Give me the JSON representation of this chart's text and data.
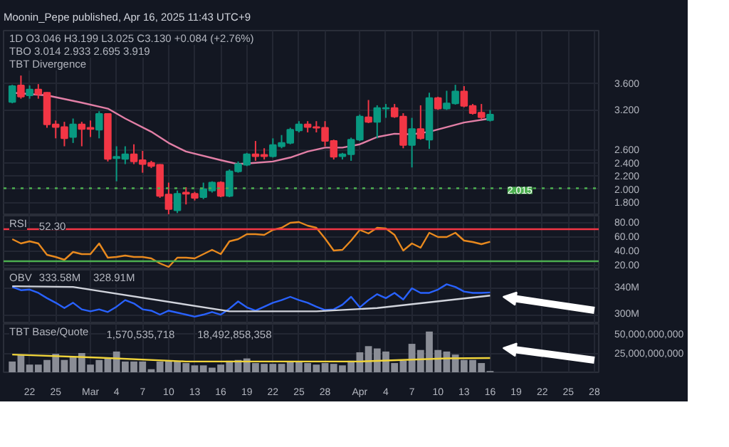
{
  "chart_data": [
    {
      "type": "candlestick",
      "title": "Moonin_Pepe published, Apr 16, 2025 11:43 UTC+9",
      "annotations": [
        "1D  O3.046 H3.199 L3.025 C3.130 +0.084 (+2.76%)",
        "TBO 3.014 2.933 2.695 3.919",
        "TBT Divergence"
      ],
      "x": [
        "2025-02-20",
        "2025-02-21",
        "2025-02-22",
        "2025-02-23",
        "2025-02-24",
        "2025-02-25",
        "2025-02-26",
        "2025-02-27",
        "2025-02-28",
        "2025-03-01",
        "2025-03-02",
        "2025-03-03",
        "2025-03-04",
        "2025-03-05",
        "2025-03-06",
        "2025-03-07",
        "2025-03-08",
        "2025-03-09",
        "2025-03-10",
        "2025-03-11",
        "2025-03-12",
        "2025-03-13",
        "2025-03-14",
        "2025-03-15",
        "2025-03-16",
        "2025-03-17",
        "2025-03-18",
        "2025-03-19",
        "2025-03-20",
        "2025-03-21",
        "2025-03-22",
        "2025-03-23",
        "2025-03-24",
        "2025-03-25",
        "2025-03-26",
        "2025-03-27",
        "2025-03-28",
        "2025-03-29",
        "2025-03-30",
        "2025-03-31",
        "2025-04-01",
        "2025-04-02",
        "2025-04-03",
        "2025-04-04",
        "2025-04-05",
        "2025-04-06",
        "2025-04-07",
        "2025-04-08",
        "2025-04-09",
        "2025-04-10",
        "2025-04-11",
        "2025-04-12",
        "2025-04-13",
        "2025-04-14",
        "2025-04-15",
        "2025-04-16"
      ],
      "ohlc": [
        [
          3.32,
          3.58,
          3.3,
          3.56
        ],
        [
          3.57,
          3.72,
          3.37,
          3.4
        ],
        [
          3.42,
          3.57,
          3.37,
          3.51
        ],
        [
          3.51,
          3.59,
          3.37,
          3.44
        ],
        [
          3.46,
          3.47,
          2.93,
          2.98
        ],
        [
          2.98,
          3.04,
          2.77,
          2.94
        ],
        [
          2.94,
          3.02,
          2.65,
          2.77
        ],
        [
          2.79,
          3.07,
          2.7,
          2.98
        ],
        [
          2.98,
          3.02,
          2.65,
          2.91
        ],
        [
          2.93,
          3.04,
          2.79,
          2.91
        ],
        [
          2.9,
          3.18,
          2.77,
          3.14
        ],
        [
          3.14,
          3.15,
          2.42,
          2.46
        ],
        [
          2.47,
          2.65,
          2.12,
          2.49
        ],
        [
          2.46,
          2.65,
          2.38,
          2.53
        ],
        [
          2.53,
          2.68,
          2.38,
          2.42
        ],
        [
          2.44,
          2.58,
          2.25,
          2.38
        ],
        [
          2.4,
          2.43,
          2.32,
          2.35
        ],
        [
          2.37,
          2.38,
          1.87,
          1.9
        ],
        [
          1.92,
          2.1,
          1.62,
          1.7
        ],
        [
          1.68,
          1.98,
          1.64,
          1.93
        ],
        [
          1.95,
          2.03,
          1.77,
          1.93
        ],
        [
          1.93,
          1.96,
          1.83,
          1.87
        ],
        [
          1.88,
          2.1,
          1.85,
          2.0
        ],
        [
          1.98,
          2.12,
          1.95,
          2.1
        ],
        [
          2.1,
          2.12,
          1.88,
          1.9
        ],
        [
          1.9,
          2.3,
          1.88,
          2.27
        ],
        [
          2.27,
          2.42,
          2.25,
          2.38
        ],
        [
          2.37,
          2.55,
          2.35,
          2.53
        ],
        [
          2.53,
          2.73,
          2.43,
          2.5
        ],
        [
          2.52,
          2.62,
          2.45,
          2.5
        ],
        [
          2.5,
          2.77,
          2.48,
          2.67
        ],
        [
          2.65,
          2.82,
          2.62,
          2.7
        ],
        [
          2.7,
          2.93,
          2.68,
          2.9
        ],
        [
          2.89,
          3.03,
          2.86,
          2.98
        ],
        [
          2.98,
          3.03,
          2.86,
          2.94
        ],
        [
          2.94,
          3.03,
          2.86,
          2.93
        ],
        [
          2.93,
          3.03,
          2.65,
          2.73
        ],
        [
          2.73,
          2.75,
          2.45,
          2.49
        ],
        [
          2.5,
          2.55,
          2.45,
          2.53
        ],
        [
          2.53,
          2.78,
          2.43,
          2.75
        ],
        [
          2.75,
          3.13,
          2.73,
          3.1
        ],
        [
          3.09,
          3.35,
          3.0,
          3.02
        ],
        [
          3.02,
          3.27,
          2.77,
          3.23
        ],
        [
          3.22,
          3.29,
          3.08,
          3.23
        ],
        [
          3.23,
          3.29,
          3.08,
          3.1
        ],
        [
          3.1,
          3.15,
          2.62,
          2.67
        ],
        [
          2.67,
          3.08,
          2.33,
          2.91
        ],
        [
          2.91,
          3.27,
          2.75,
          2.77
        ],
        [
          2.75,
          3.46,
          2.61,
          3.38
        ],
        [
          3.38,
          3.4,
          3.2,
          3.22
        ],
        [
          3.22,
          3.49,
          3.2,
          3.3
        ],
        [
          3.3,
          3.58,
          3.28,
          3.48
        ],
        [
          3.48,
          3.56,
          3.24,
          3.26
        ],
        [
          3.26,
          3.29,
          3.13,
          3.15
        ],
        [
          3.16,
          3.29,
          3.06,
          3.09
        ],
        [
          3.046,
          3.199,
          3.025,
          3.13
        ]
      ],
      "colors": [
        "#089981",
        "#f23645",
        "#089981",
        "#f23645",
        "#f23645",
        "#f23645",
        "#f23645",
        "#089981",
        "#f23645",
        "#f23645",
        "#089981",
        "#f23645",
        "#089981",
        "#089981",
        "#f23645",
        "#f23645",
        "#f23645",
        "#f23645",
        "#f23645",
        "#089981",
        "#f23645",
        "#f23645",
        "#089981",
        "#089981",
        "#f23645",
        "#089981",
        "#089981",
        "#089981",
        "#f23645",
        "#f23645",
        "#089981",
        "#089981",
        "#089981",
        "#089981",
        "#f23645",
        "#f23645",
        "#f23645",
        "#f23645",
        "#089981",
        "#089981",
        "#089981",
        "#f23645",
        "#089981",
        "#089981",
        "#f23645",
        "#f23645",
        "#089981",
        "#f23645",
        "#089981",
        "#f23645",
        "#089981",
        "#089981",
        "#f23645",
        "#f23645",
        "#f23645",
        "#089981"
      ],
      "series": [
        {
          "type": "line",
          "color": "#e27fa6",
          "x": [
            "2025-02-20",
            "2025-02-24",
            "2025-02-28",
            "2025-03-03",
            "2025-03-05",
            "2025-03-08",
            "2025-03-10",
            "2025-03-12",
            "2025-03-16",
            "2025-03-18",
            "2025-03-20",
            "2025-03-22",
            "2025-03-24",
            "2025-03-26",
            "2025-03-28",
            "2025-03-30",
            "2025-04-01",
            "2025-04-03",
            "2025-04-05",
            "2025-04-07",
            "2025-04-09",
            "2025-04-11",
            "2025-04-13",
            "2025-04-16"
          ],
          "values": [
            3.46,
            3.42,
            3.31,
            3.22,
            3.07,
            2.87,
            2.7,
            2.57,
            2.44,
            2.38,
            2.4,
            2.42,
            2.48,
            2.57,
            2.63,
            2.63,
            2.68,
            2.79,
            2.84,
            2.83,
            2.87,
            2.94,
            3.01,
            3.07
          ]
        }
      ],
      "ref_lines": [
        {
          "axis": "y",
          "value": 2.015,
          "label": "2.015",
          "color": "#4caf50",
          "line_style": "dotted"
        }
      ],
      "xlim": [
        "2025-02-19",
        "2025-04-28T12:00"
      ],
      "ylim": [
        1.6,
        4.4
      ],
      "yticks": [
        {
          "value": 1.8,
          "label": "1.800"
        },
        {
          "value": 2.0,
          "label": "2.000"
        },
        {
          "value": 2.2,
          "label": "2.200"
        },
        {
          "value": 2.4,
          "label": "2.400"
        },
        {
          "value": 2.6,
          "label": "2.600"
        },
        {
          "value": 3.2,
          "label": "3.200"
        },
        {
          "value": 3.6,
          "label": "3.600"
        }
      ],
      "tick_labels": "y",
      "grid": true
    },
    {
      "type": "line",
      "title": "RSI",
      "annotations": [
        "52.30"
      ],
      "x": [
        "2025-02-20",
        "2025-02-21",
        "2025-02-22",
        "2025-02-23",
        "2025-02-24",
        "2025-02-25",
        "2025-02-26",
        "2025-02-27",
        "2025-02-28",
        "2025-03-01",
        "2025-03-02",
        "2025-03-03",
        "2025-03-04",
        "2025-03-05",
        "2025-03-06",
        "2025-03-07",
        "2025-03-08",
        "2025-03-09",
        "2025-03-10",
        "2025-03-11",
        "2025-03-12",
        "2025-03-13",
        "2025-03-14",
        "2025-03-15",
        "2025-03-16",
        "2025-03-17",
        "2025-03-18",
        "2025-03-19",
        "2025-03-20",
        "2025-03-21",
        "2025-03-22",
        "2025-03-23",
        "2025-03-24",
        "2025-03-25",
        "2025-03-26",
        "2025-03-27",
        "2025-03-28",
        "2025-03-29",
        "2025-03-30",
        "2025-03-31",
        "2025-04-01",
        "2025-04-02",
        "2025-04-03",
        "2025-04-04",
        "2025-04-05",
        "2025-04-06",
        "2025-04-07",
        "2025-04-08",
        "2025-04-09",
        "2025-04-10",
        "2025-04-11",
        "2025-04-12",
        "2025-04-13",
        "2025-04-14",
        "2025-04-15",
        "2025-04-16"
      ],
      "series": [
        {
          "color": "#e8891e",
          "values": [
            56,
            50,
            53,
            50,
            34,
            31,
            27,
            38,
            35,
            35,
            50,
            30,
            31,
            33,
            31,
            31,
            29,
            22,
            17,
            30,
            30,
            29,
            35,
            41,
            35,
            53,
            56,
            63,
            63,
            62,
            69,
            72,
            79,
            80,
            75,
            72,
            57,
            40,
            41,
            54,
            69,
            64,
            72,
            71,
            62,
            40,
            50,
            44,
            65,
            59,
            59,
            65,
            54,
            52,
            49,
            52.3
          ]
        }
      ],
      "ref_lines": [
        {
          "axis": "y",
          "value": 70,
          "color": "#f23645",
          "line_style": "solid"
        },
        {
          "axis": "y",
          "value": 25,
          "color": "#4caf50",
          "line_style": "solid"
        }
      ],
      "xlim": [
        "2025-02-19",
        "2025-04-28T12:00"
      ],
      "ylim": [
        13,
        89
      ],
      "yticks": [
        {
          "value": 20,
          "label": "20.00"
        },
        {
          "value": 40,
          "label": "40.00"
        },
        {
          "value": 60,
          "label": "60.00"
        },
        {
          "value": 80,
          "label": "80.00"
        }
      ],
      "tick_labels": "y",
      "grid": true
    },
    {
      "type": "line",
      "title": "OBV",
      "annotations": [
        "333.58M",
        "328.91M"
      ],
      "x": [
        "2025-02-20",
        "2025-02-21",
        "2025-02-22",
        "2025-02-23",
        "2025-02-24",
        "2025-02-25",
        "2025-02-26",
        "2025-02-27",
        "2025-02-28",
        "2025-03-01",
        "2025-03-02",
        "2025-03-03",
        "2025-03-04",
        "2025-03-05",
        "2025-03-06",
        "2025-03-07",
        "2025-03-08",
        "2025-03-09",
        "2025-03-10",
        "2025-03-11",
        "2025-03-12",
        "2025-03-13",
        "2025-03-14",
        "2025-03-15",
        "2025-03-16",
        "2025-03-17",
        "2025-03-18",
        "2025-03-19",
        "2025-03-20",
        "2025-03-21",
        "2025-03-22",
        "2025-03-23",
        "2025-03-24",
        "2025-03-25",
        "2025-03-26",
        "2025-03-27",
        "2025-03-28",
        "2025-03-29",
        "2025-03-30",
        "2025-03-31",
        "2025-04-01",
        "2025-04-02",
        "2025-04-03",
        "2025-04-04",
        "2025-04-05",
        "2025-04-06",
        "2025-04-07",
        "2025-04-08",
        "2025-04-09",
        "2025-04-10",
        "2025-04-11",
        "2025-04-12",
        "2025-04-13",
        "2025-04-14",
        "2025-04-15",
        "2025-04-16"
      ],
      "series": [
        {
          "color": "#2962ff",
          "values": [
            342,
            337,
            338,
            333,
            325,
            318,
            310,
            318,
            308,
            305,
            308,
            304,
            312,
            322,
            317,
            308,
            306,
            300,
            306,
            303,
            300,
            297,
            300,
            304,
            300,
            309,
            320,
            311,
            306,
            312,
            318,
            322,
            327,
            322,
            318,
            312,
            307,
            308,
            315,
            327,
            311,
            322,
            331,
            325,
            333,
            323,
            340,
            333,
            333,
            338,
            346,
            342,
            335,
            333,
            333,
            333.58
          ]
        },
        {
          "color": "#d1d4dc",
          "x": [
            "2025-02-20",
            "2025-02-27",
            "2025-03-17",
            "2025-03-27",
            "2025-04-03",
            "2025-04-16"
          ],
          "values": [
            343,
            342,
            305,
            305,
            310,
            328.91
          ]
        }
      ],
      "xlim": [
        "2025-02-19",
        "2025-04-28T12:00"
      ],
      "ylim": [
        286,
        368
      ],
      "yticks": [
        {
          "value": 300,
          "label": "300M"
        },
        {
          "value": 340,
          "label": "340M"
        }
      ],
      "tick_labels": "y",
      "grid": true
    },
    {
      "type": "bar",
      "title": "TBT Base/Quote",
      "annotations": [
        "1,570,535,718",
        "18,492,858,358"
      ],
      "x": [
        "2025-02-20",
        "2025-02-21",
        "2025-02-22",
        "2025-02-23",
        "2025-02-24",
        "2025-02-25",
        "2025-02-26",
        "2025-02-27",
        "2025-02-28",
        "2025-03-01",
        "2025-03-02",
        "2025-03-03",
        "2025-03-04",
        "2025-03-05",
        "2025-03-06",
        "2025-03-07",
        "2025-03-08",
        "2025-03-09",
        "2025-03-10",
        "2025-03-11",
        "2025-03-12",
        "2025-03-13",
        "2025-03-14",
        "2025-03-15",
        "2025-03-16",
        "2025-03-17",
        "2025-03-18",
        "2025-03-19",
        "2025-03-20",
        "2025-03-21",
        "2025-03-22",
        "2025-03-23",
        "2025-03-24",
        "2025-03-25",
        "2025-03-26",
        "2025-03-27",
        "2025-03-28",
        "2025-03-29",
        "2025-03-30",
        "2025-03-31",
        "2025-04-01",
        "2025-04-02",
        "2025-04-03",
        "2025-04-04",
        "2025-04-05",
        "2025-04-06",
        "2025-04-07",
        "2025-04-08",
        "2025-04-09",
        "2025-04-10",
        "2025-04-11",
        "2025-04-12",
        "2025-04-13",
        "2025-04-14",
        "2025-04-15",
        "2025-04-16"
      ],
      "series": [
        {
          "type": "bar",
          "color": "#8a8d96",
          "values": [
            14000000000.0,
            23000000000.0,
            10000000000.0,
            10000000000.0,
            16000000000.0,
            24000000000.0,
            16000000000.0,
            20000000000.0,
            25000000000.0,
            10000000000.0,
            16000000000.0,
            18000000000.0,
            27000000000.0,
            14000000000.0,
            14000000000.0,
            14000000000.0,
            4000000000.0,
            14000000000.0,
            15000000000.0,
            14000000000.0,
            12000000000.0,
            9000000000.0,
            9000000000.0,
            6000000000.0,
            10000000000.0,
            15000000000.0,
            16000000000.0,
            18000000000.0,
            12000000000.0,
            11000000000.0,
            11000000000.0,
            11000000000.0,
            14000000000.0,
            14000000000.0,
            12000000000.0,
            10000000000.0,
            12000000000.0,
            11000000000.0,
            9000000000.0,
            15000000000.0,
            26000000000.0,
            34000000000.0,
            31000000000.0,
            27000000000.0,
            12000000000.0,
            15000000000.0,
            37000000000.0,
            29000000000.0,
            53000000000.0,
            29000000000.0,
            27000000000.0,
            23000000000.0,
            16000000000.0,
            16000000000.0,
            12000000000.0,
            1570535718
          ]
        },
        {
          "type": "line",
          "color": "#f0d43a",
          "x": [
            "2025-02-20",
            "2025-03-02",
            "2025-03-12",
            "2025-03-22",
            "2025-04-01",
            "2025-04-11",
            "2025-04-16"
          ],
          "values": [
            23000000000.0,
            19000000000.0,
            14000000000.0,
            14000000000.0,
            14000000000.0,
            18000000000.0,
            18492858358
          ]
        }
      ],
      "xlim": [
        "2025-02-19",
        "2025-04-28T12:00"
      ],
      "xticks": [
        {
          "value": "2025-02-22",
          "label": "22"
        },
        {
          "value": "2025-02-25",
          "label": "25"
        },
        {
          "value": "2025-03-01",
          "label": "Mar"
        },
        {
          "value": "2025-03-04",
          "label": "4"
        },
        {
          "value": "2025-03-07",
          "label": "7"
        },
        {
          "value": "2025-03-10",
          "label": "10"
        },
        {
          "value": "2025-03-13",
          "label": "13"
        },
        {
          "value": "2025-03-16",
          "label": "16"
        },
        {
          "value": "2025-03-19",
          "label": "19"
        },
        {
          "value": "2025-03-22",
          "label": "22"
        },
        {
          "value": "2025-03-25",
          "label": "25"
        },
        {
          "value": "2025-03-28",
          "label": "28"
        },
        {
          "value": "2025-04-01",
          "label": "Apr"
        },
        {
          "value": "2025-04-04",
          "label": "4"
        },
        {
          "value": "2025-04-07",
          "label": "7"
        },
        {
          "value": "2025-04-10",
          "label": "10"
        },
        {
          "value": "2025-04-13",
          "label": "13"
        },
        {
          "value": "2025-04-16",
          "label": "16"
        },
        {
          "value": "2025-04-19",
          "label": "19"
        },
        {
          "value": "2025-04-22",
          "label": "22"
        },
        {
          "value": "2025-04-25",
          "label": "25"
        },
        {
          "value": "2025-04-28",
          "label": "28"
        }
      ],
      "ylim": [
        0,
        63000000000.0
      ],
      "yticks": [
        {
          "value": 25000000000.0,
          "label": "25,000,000,000"
        },
        {
          "value": 50000000000.0,
          "label": "50,000,000,000"
        }
      ],
      "grid": true
    }
  ]
}
